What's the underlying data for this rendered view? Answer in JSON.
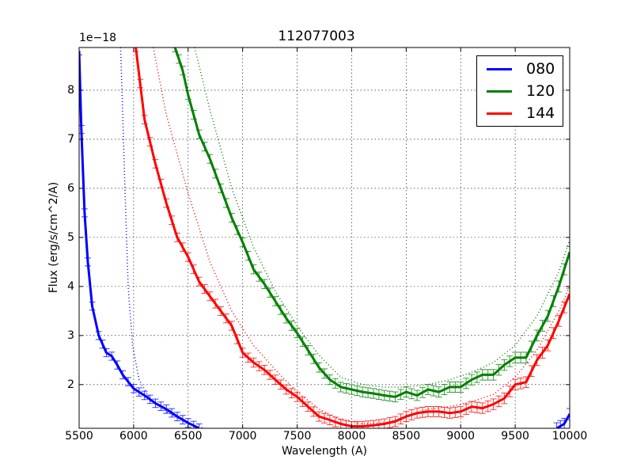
{
  "chart_data": {
    "type": "line",
    "title": "112077003",
    "xlabel": "Wavelength (A)",
    "ylabel": "Flux (erg/s/cm^2/A)",
    "y_offset_label": "1e−18",
    "xlim": [
      5500,
      10000
    ],
    "ylim": [
      1.11,
      8.87
    ],
    "y_scale_factor": 1e-18,
    "grid": true,
    "legend_position": "upper right",
    "x_ticks": [
      "5500",
      "6000",
      "6500",
      "7000",
      "7500",
      "8000",
      "8500",
      "9000",
      "9500",
      "10000"
    ],
    "y_ticks": [
      "2",
      "3",
      "4",
      "5",
      "6",
      "7",
      "8"
    ],
    "series": [
      {
        "name": "080",
        "color": "#0000ff",
        "style": "solid-with-errorbars",
        "points": [
          [
            5500,
            8.8
          ],
          [
            5520,
            7.2
          ],
          [
            5550,
            5.5
          ],
          [
            5580,
            4.5
          ],
          [
            5620,
            3.6
          ],
          [
            5680,
            3.0
          ],
          [
            5750,
            2.65
          ],
          [
            5800,
            2.58
          ],
          [
            5850,
            2.4
          ],
          [
            5900,
            2.2
          ],
          [
            6000,
            1.92
          ],
          [
            6100,
            1.78
          ],
          [
            6200,
            1.62
          ],
          [
            6300,
            1.5
          ],
          [
            6400,
            1.35
          ],
          [
            6500,
            1.22
          ],
          [
            6600,
            1.11
          ]
        ],
        "points_tail": [
          [
            9880,
            1.11
          ],
          [
            9950,
            1.2
          ],
          [
            10000,
            1.4
          ]
        ],
        "model_dotted": [
          [
            5880,
            8.87
          ],
          [
            5900,
            7.5
          ],
          [
            5920,
            6.0
          ],
          [
            5950,
            4.0
          ],
          [
            5990,
            2.8
          ],
          [
            6050,
            2.1
          ],
          [
            6150,
            1.7
          ],
          [
            6300,
            1.45
          ],
          [
            6500,
            1.2
          ],
          [
            6650,
            1.11
          ]
        ]
      },
      {
        "name": "120",
        "color": "#008000",
        "style": "solid-with-errorbars",
        "points": [
          [
            6380,
            8.87
          ],
          [
            6450,
            8.4
          ],
          [
            6500,
            7.9
          ],
          [
            6600,
            7.1
          ],
          [
            6700,
            6.6
          ],
          [
            6800,
            6.0
          ],
          [
            6900,
            5.4
          ],
          [
            7000,
            4.9
          ],
          [
            7100,
            4.35
          ],
          [
            7200,
            4.05
          ],
          [
            7300,
            3.7
          ],
          [
            7400,
            3.35
          ],
          [
            7500,
            3.05
          ],
          [
            7600,
            2.7
          ],
          [
            7700,
            2.35
          ],
          [
            7800,
            2.1
          ],
          [
            7900,
            1.95
          ],
          [
            8000,
            1.9
          ],
          [
            8100,
            1.85
          ],
          [
            8200,
            1.82
          ],
          [
            8300,
            1.78
          ],
          [
            8400,
            1.75
          ],
          [
            8500,
            1.85
          ],
          [
            8600,
            1.78
          ],
          [
            8700,
            1.9
          ],
          [
            8800,
            1.85
          ],
          [
            8900,
            1.95
          ],
          [
            9000,
            1.95
          ],
          [
            9100,
            2.1
          ],
          [
            9200,
            2.2
          ],
          [
            9300,
            2.2
          ],
          [
            9400,
            2.4
          ],
          [
            9500,
            2.55
          ],
          [
            9600,
            2.55
          ],
          [
            9700,
            3.0
          ],
          [
            9800,
            3.4
          ],
          [
            9900,
            4.0
          ],
          [
            10000,
            4.7
          ]
        ],
        "model_dotted": [
          [
            6560,
            8.87
          ],
          [
            6700,
            7.6
          ],
          [
            6900,
            6.0
          ],
          [
            7100,
            4.8
          ],
          [
            7300,
            3.9
          ],
          [
            7500,
            3.2
          ],
          [
            7700,
            2.6
          ],
          [
            7900,
            2.15
          ],
          [
            8100,
            2.0
          ],
          [
            8300,
            1.95
          ],
          [
            8500,
            1.95
          ],
          [
            8700,
            2.0
          ],
          [
            8900,
            2.1
          ],
          [
            9100,
            2.25
          ],
          [
            9300,
            2.45
          ],
          [
            9500,
            2.8
          ],
          [
            9700,
            3.4
          ],
          [
            9900,
            4.3
          ],
          [
            10000,
            4.95
          ]
        ]
      },
      {
        "name": "144",
        "color": "#ff0000",
        "style": "solid-with-errorbars",
        "points": [
          [
            6020,
            8.87
          ],
          [
            6100,
            7.4
          ],
          [
            6200,
            6.5
          ],
          [
            6300,
            5.7
          ],
          [
            6400,
            5.0
          ],
          [
            6500,
            4.6
          ],
          [
            6600,
            4.1
          ],
          [
            6700,
            3.8
          ],
          [
            6800,
            3.5
          ],
          [
            6900,
            3.2
          ],
          [
            7000,
            2.65
          ],
          [
            7100,
            2.45
          ],
          [
            7200,
            2.3
          ],
          [
            7300,
            2.1
          ],
          [
            7400,
            1.9
          ],
          [
            7500,
            1.75
          ],
          [
            7600,
            1.55
          ],
          [
            7700,
            1.35
          ],
          [
            7800,
            1.28
          ],
          [
            7900,
            1.2
          ],
          [
            8000,
            1.15
          ],
          [
            8100,
            1.15
          ],
          [
            8200,
            1.17
          ],
          [
            8300,
            1.2
          ],
          [
            8400,
            1.25
          ],
          [
            8500,
            1.35
          ],
          [
            8600,
            1.42
          ],
          [
            8700,
            1.45
          ],
          [
            8800,
            1.45
          ],
          [
            8900,
            1.42
          ],
          [
            9000,
            1.45
          ],
          [
            9100,
            1.55
          ],
          [
            9200,
            1.52
          ],
          [
            9300,
            1.6
          ],
          [
            9400,
            1.72
          ],
          [
            9500,
            2.0
          ],
          [
            9600,
            2.05
          ],
          [
            9700,
            2.5
          ],
          [
            9800,
            2.8
          ],
          [
            9900,
            3.3
          ],
          [
            10000,
            3.85
          ]
        ],
        "model_dotted": [
          [
            6180,
            8.87
          ],
          [
            6300,
            7.5
          ],
          [
            6500,
            5.9
          ],
          [
            6700,
            4.5
          ],
          [
            6900,
            3.5
          ],
          [
            7100,
            2.8
          ],
          [
            7300,
            2.3
          ],
          [
            7500,
            1.85
          ],
          [
            7700,
            1.5
          ],
          [
            7900,
            1.28
          ],
          [
            8100,
            1.2
          ],
          [
            8300,
            1.22
          ],
          [
            8500,
            1.35
          ],
          [
            8700,
            1.5
          ],
          [
            8900,
            1.55
          ],
          [
            9100,
            1.65
          ],
          [
            9300,
            1.8
          ],
          [
            9500,
            2.15
          ],
          [
            9700,
            2.7
          ],
          [
            9900,
            3.5
          ],
          [
            10000,
            4.0
          ]
        ]
      }
    ]
  },
  "legend": {
    "items": [
      {
        "label": "080",
        "color": "#0000ff"
      },
      {
        "label": "120",
        "color": "#008000"
      },
      {
        "label": "144",
        "color": "#ff0000"
      }
    ]
  }
}
